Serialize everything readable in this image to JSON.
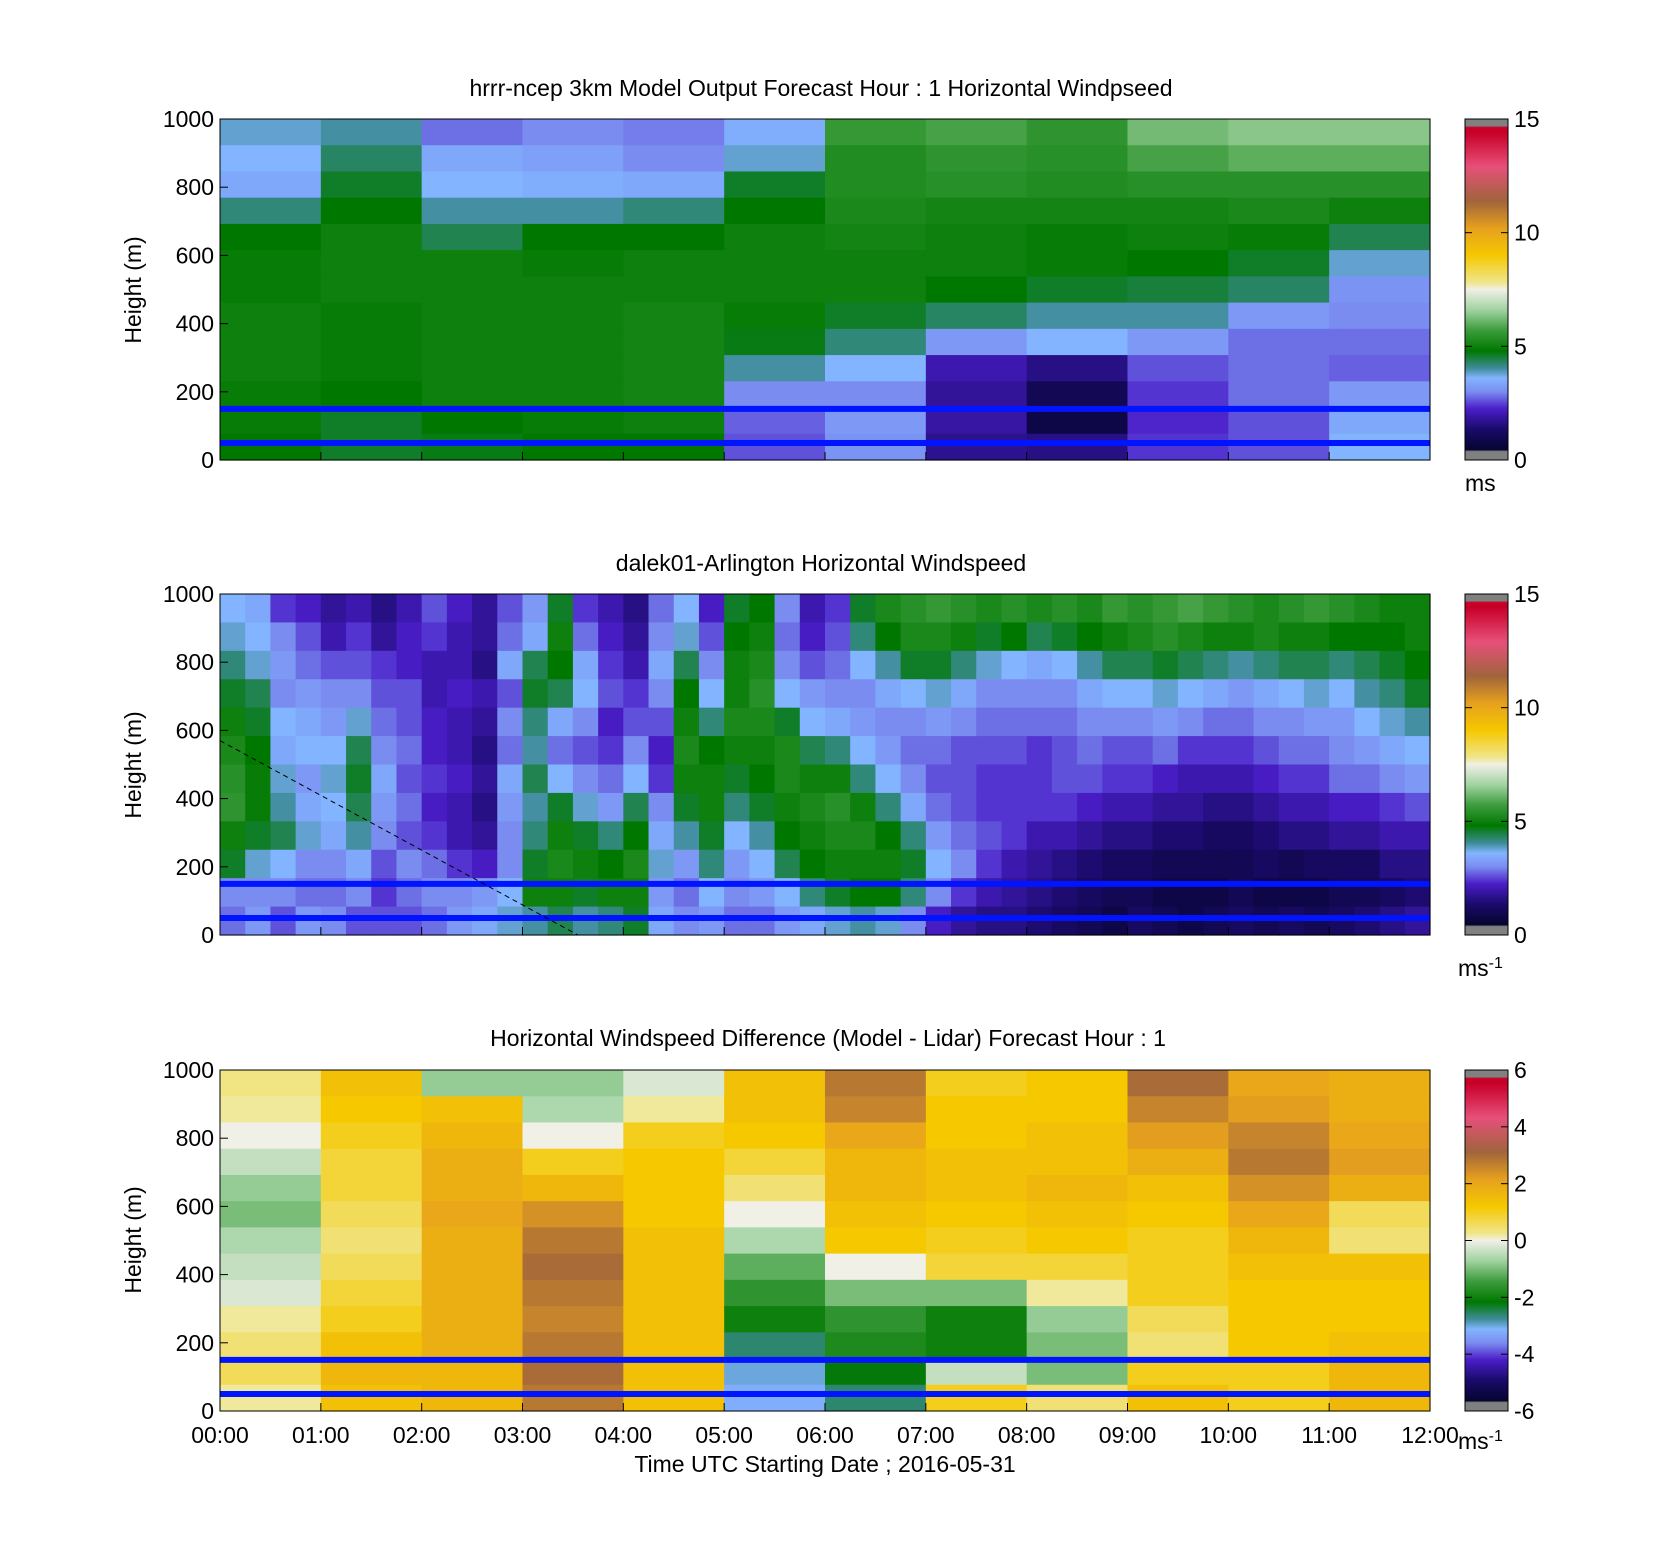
{
  "chart_data": [
    {
      "type": "heatmap",
      "title": "hrrr-ncep 3km Model Output   Forecast Hour : 1 Horizontal Windpseed",
      "ylabel": "Height (m)",
      "xlabel": "",
      "ylim": [
        0,
        1000
      ],
      "yticks": [
        "0",
        "200",
        "400",
        "600",
        "800",
        "1000"
      ],
      "colorbar": {
        "min": 0,
        "max": 15,
        "ticks": [
          "0",
          "5",
          "10",
          "15"
        ],
        "unit": "ms",
        "unit_sup": "",
        "palette": "windspeed"
      },
      "reference_lines_m": [
        50,
        150
      ],
      "x_hours": [
        0,
        1,
        2,
        3,
        4,
        5,
        6,
        7,
        8,
        9,
        10,
        11,
        12
      ],
      "cells_note": "hourly model columns of windspeed (m/s), rows from 1000 m down to 0 m",
      "columns": [
        [
          3.8,
          3.6,
          3.4,
          4.2,
          4.8,
          4.9,
          4.9,
          5.0,
          5.0,
          5.0,
          4.9,
          4.9,
          4.8
        ],
        [
          4.0,
          4.3,
          4.6,
          4.8,
          5.0,
          5.0,
          5.0,
          4.9,
          4.9,
          4.9,
          4.8,
          4.6,
          4.6
        ],
        [
          2.8,
          3.4,
          3.6,
          4.0,
          4.4,
          5.0,
          5.0,
          5.0,
          5.0,
          5.0,
          5.0,
          4.8,
          4.7
        ],
        [
          3.0,
          3.3,
          3.5,
          4.0,
          4.8,
          4.9,
          5.0,
          5.0,
          5.0,
          5.0,
          5.0,
          4.9,
          4.8
        ],
        [
          2.9,
          3.0,
          3.4,
          4.2,
          4.8,
          5.0,
          5.0,
          5.1,
          5.1,
          5.1,
          5.1,
          5.0,
          4.8
        ],
        [
          3.5,
          3.8,
          4.6,
          4.8,
          5.0,
          5.0,
          5.0,
          4.9,
          4.7,
          4.0,
          3.0,
          2.7,
          2.6
        ],
        [
          5.6,
          5.3,
          5.3,
          5.2,
          5.1,
          5.0,
          5.0,
          4.6,
          4.2,
          3.6,
          3.0,
          3.2,
          3.1
        ],
        [
          5.8,
          5.5,
          5.4,
          5.1,
          5.0,
          5.0,
          4.8,
          4.3,
          3.2,
          2.0,
          1.8,
          1.9,
          1.7
        ],
        [
          5.5,
          5.4,
          5.3,
          5.1,
          4.9,
          4.9,
          4.6,
          4.0,
          3.6,
          1.6,
          1.0,
          0.8,
          1.6
        ],
        [
          6.2,
          5.8,
          5.4,
          5.1,
          5.0,
          4.8,
          4.5,
          4.0,
          3.2,
          2.6,
          2.4,
          2.3,
          2.4
        ],
        [
          6.4,
          6.0,
          5.4,
          5.2,
          4.9,
          4.6,
          4.3,
          3.2,
          2.8,
          2.8,
          2.8,
          2.6,
          2.6
        ],
        [
          6.4,
          6.0,
          5.4,
          5.0,
          4.4,
          3.8,
          3.1,
          3.0,
          2.8,
          2.7,
          3.2,
          3.4,
          3.6
        ]
      ]
    },
    {
      "type": "heatmap",
      "title": "dalek01-Arlington  Horizontal Windspeed",
      "ylabel": "Height (m)",
      "xlabel": "",
      "ylim": [
        0,
        1000
      ],
      "yticks": [
        "0",
        "200",
        "400",
        "600",
        "800",
        "1000"
      ],
      "colorbar": {
        "min": 0,
        "max": 15,
        "ticks": [
          "0",
          "5",
          "10",
          "15"
        ],
        "unit": "ms",
        "unit_sup": "-1",
        "palette": "windspeed"
      },
      "reference_lines_m": [
        50,
        150
      ],
      "dashed_line": {
        "from": [
          0,
          570
        ],
        "to": [
          3.55,
          0
        ]
      },
      "x_hours": [
        0,
        1,
        2,
        3,
        4,
        5,
        6,
        7,
        8,
        9,
        10,
        11,
        12
      ],
      "cells_note": "lidar windspeed (m/s) sampled every 15 min at 12 height bands from 1000 m down to 0 m",
      "columns": [
        [
          3.6,
          3.8,
          4.2,
          4.6,
          5.0,
          5.2,
          5.4,
          5.5,
          5.0,
          4.6,
          3.0,
          2.8
        ],
        [
          3.4,
          3.6,
          3.8,
          4.4,
          4.6,
          4.8,
          4.9,
          4.9,
          4.6,
          3.8,
          3.0,
          3.2
        ],
        [
          2.4,
          3.0,
          3.2,
          3.0,
          3.6,
          3.4,
          3.8,
          4.0,
          4.4,
          3.6,
          3.0,
          2.6
        ],
        [
          2.2,
          2.6,
          2.8,
          3.2,
          3.4,
          3.6,
          3.2,
          3.4,
          3.8,
          3.0,
          2.8,
          3.2
        ],
        [
          1.8,
          2.0,
          2.6,
          3.0,
          3.2,
          3.6,
          3.8,
          3.6,
          3.4,
          3.0,
          2.8,
          3.0
        ],
        [
          2.0,
          2.4,
          2.6,
          3.0,
          3.8,
          4.4,
          4.6,
          4.4,
          4.0,
          3.4,
          3.0,
          2.6
        ],
        [
          1.6,
          1.8,
          2.4,
          2.6,
          2.8,
          3.0,
          3.4,
          3.2,
          3.0,
          2.6,
          2.4,
          2.6
        ],
        [
          2.0,
          2.2,
          2.2,
          2.6,
          2.6,
          2.8,
          2.6,
          2.8,
          2.6,
          3.0,
          2.8,
          2.6
        ],
        [
          2.6,
          2.4,
          2.0,
          2.0,
          2.2,
          2.2,
          2.4,
          2.2,
          2.4,
          2.8,
          3.0,
          2.8
        ],
        [
          2.2,
          2.0,
          2.0,
          2.2,
          2.0,
          2.0,
          2.2,
          2.0,
          2.0,
          2.4,
          3.0,
          3.2
        ],
        [
          1.8,
          1.8,
          1.6,
          2.0,
          1.8,
          1.6,
          1.8,
          1.6,
          1.8,
          2.2,
          3.2,
          3.4
        ],
        [
          2.6,
          2.8,
          3.4,
          2.6,
          3.0,
          2.8,
          3.4,
          3.2,
          3.0,
          3.0,
          3.6,
          3.8
        ],
        [
          3.2,
          3.4,
          4.4,
          4.6,
          4.2,
          4.0,
          4.4,
          4.0,
          4.2,
          4.6,
          5.0,
          4.0
        ],
        [
          4.6,
          5.0,
          4.8,
          4.4,
          3.4,
          2.8,
          3.6,
          4.6,
          5.0,
          5.2,
          5.0,
          4.4
        ],
        [
          2.4,
          2.8,
          3.4,
          3.6,
          3.0,
          2.6,
          3.0,
          3.8,
          4.6,
          5.0,
          4.6,
          4.0
        ],
        [
          2.0,
          2.2,
          2.4,
          2.6,
          2.2,
          2.4,
          2.8,
          3.2,
          4.2,
          4.8,
          5.0,
          4.2
        ],
        [
          1.6,
          1.8,
          2.0,
          2.4,
          2.6,
          3.0,
          3.6,
          4.4,
          4.8,
          5.2,
          5.0,
          4.6
        ],
        [
          2.8,
          3.0,
          3.4,
          3.0,
          2.6,
          2.2,
          2.4,
          3.0,
          3.4,
          3.8,
          3.2,
          3.4
        ],
        [
          3.6,
          3.8,
          4.4,
          4.8,
          5.0,
          5.2,
          5.0,
          4.6,
          4.0,
          3.2,
          2.8,
          3.0
        ],
        [
          2.2,
          2.6,
          3.0,
          3.6,
          4.2,
          4.8,
          5.0,
          5.0,
          4.6,
          4.2,
          3.6,
          3.2
        ],
        [
          4.6,
          4.8,
          5.0,
          5.0,
          5.2,
          5.0,
          4.6,
          4.2,
          3.6,
          3.2,
          3.0,
          2.8
        ],
        [
          4.8,
          5.0,
          5.2,
          5.4,
          5.2,
          5.0,
          4.8,
          4.6,
          4.0,
          3.6,
          3.2,
          2.8
        ],
        [
          3.0,
          2.8,
          3.0,
          3.6,
          4.6,
          5.2,
          5.2,
          5.0,
          4.8,
          4.4,
          3.6,
          3.2
        ],
        [
          2.0,
          2.2,
          2.6,
          3.2,
          3.6,
          4.4,
          5.0,
          5.2,
          5.0,
          4.8,
          4.2,
          3.4
        ],
        [
          2.4,
          2.6,
          2.8,
          3.0,
          3.4,
          4.2,
          5.0,
          5.4,
          5.2,
          5.0,
          4.6,
          3.8
        ],
        [
          4.6,
          4.2,
          3.6,
          3.0,
          3.2,
          3.6,
          4.2,
          5.0,
          5.2,
          5.0,
          4.8,
          4.0
        ],
        [
          5.2,
          4.8,
          4.0,
          3.4,
          3.0,
          3.2,
          3.6,
          4.2,
          4.8,
          5.0,
          4.8,
          3.8
        ],
        [
          5.4,
          5.2,
          4.6,
          3.6,
          3.0,
          2.8,
          3.0,
          3.4,
          4.2,
          4.6,
          4.2,
          3.0
        ],
        [
          5.6,
          5.2,
          4.6,
          3.8,
          3.2,
          2.8,
          2.6,
          2.8,
          3.2,
          3.6,
          3.0,
          2.2
        ],
        [
          5.4,
          5.0,
          4.2,
          3.4,
          3.0,
          2.6,
          2.6,
          2.6,
          2.8,
          3.0,
          2.4,
          1.8
        ],
        [
          5.2,
          4.6,
          3.8,
          3.0,
          2.8,
          2.6,
          2.4,
          2.4,
          2.6,
          2.4,
          2.0,
          1.6
        ],
        [
          5.4,
          4.8,
          3.6,
          3.0,
          2.8,
          2.6,
          2.4,
          2.4,
          2.4,
          2.0,
          1.8,
          1.6
        ],
        [
          5.2,
          4.4,
          3.4,
          3.0,
          2.8,
          2.4,
          2.4,
          2.4,
          2.0,
          1.8,
          1.6,
          1.4
        ],
        [
          5.4,
          4.6,
          3.6,
          3.0,
          2.8,
          2.6,
          2.6,
          2.4,
          2.0,
          1.6,
          1.4,
          1.2
        ],
        [
          5.2,
          4.8,
          4.0,
          3.4,
          3.0,
          2.8,
          2.6,
          2.2,
          1.8,
          1.4,
          1.2,
          1.0
        ],
        [
          5.6,
          5.0,
          4.4,
          3.6,
          3.0,
          2.6,
          2.4,
          2.0,
          1.6,
          1.2,
          1.0,
          0.8
        ],
        [
          5.4,
          5.2,
          4.4,
          3.6,
          3.0,
          2.6,
          2.4,
          2.0,
          1.6,
          1.2,
          1.0,
          1.2
        ],
        [
          5.6,
          5.4,
          4.6,
          3.8,
          3.2,
          2.8,
          2.2,
          1.8,
          1.4,
          1.0,
          0.8,
          1.0
        ],
        [
          5.8,
          5.2,
          4.4,
          3.6,
          3.0,
          2.4,
          2.0,
          1.8,
          1.4,
          1.0,
          0.8,
          0.8
        ],
        [
          5.6,
          5.0,
          4.2,
          3.4,
          2.8,
          2.4,
          2.0,
          1.6,
          1.2,
          1.0,
          0.8,
          1.0
        ],
        [
          5.4,
          5.0,
          4.0,
          3.2,
          2.8,
          2.4,
          2.0,
          1.6,
          1.2,
          1.0,
          1.0,
          1.2
        ],
        [
          5.2,
          5.2,
          4.2,
          3.4,
          3.0,
          2.6,
          2.2,
          1.8,
          1.4,
          1.2,
          0.8,
          1.0
        ],
        [
          5.4,
          5.0,
          4.4,
          3.6,
          3.0,
          2.8,
          2.4,
          2.0,
          1.6,
          1.0,
          0.8,
          1.2
        ],
        [
          5.6,
          5.0,
          4.4,
          3.8,
          3.2,
          2.8,
          2.4,
          2.0,
          1.6,
          1.2,
          0.8,
          1.0
        ],
        [
          5.4,
          4.8,
          4.2,
          3.6,
          3.2,
          3.0,
          2.8,
          2.2,
          1.8,
          1.2,
          1.0,
          1.2
        ],
        [
          5.2,
          4.8,
          4.4,
          4.0,
          3.6,
          3.2,
          2.8,
          2.2,
          1.8,
          1.2,
          1.0,
          1.4
        ],
        [
          5.0,
          4.8,
          4.6,
          4.2,
          3.8,
          3.4,
          3.0,
          2.4,
          2.0,
          1.6,
          1.2,
          1.6
        ],
        [
          5.0,
          5.0,
          4.8,
          4.6,
          4.0,
          3.6,
          3.2,
          2.6,
          2.0,
          1.6,
          1.4,
          1.8
        ]
      ]
    },
    {
      "type": "heatmap",
      "title": "Horizontal Windspeed Difference (Model - Lidar) Forecast Hour : 1",
      "ylabel": "Height (m)",
      "xlabel": "Time UTC  Starting Date ; 2016-05-31",
      "ylim": [
        0,
        1000
      ],
      "yticks": [
        "0",
        "200",
        "400",
        "600",
        "800",
        "1000"
      ],
      "xticks": [
        "00:00",
        "01:00",
        "02:00",
        "03:00",
        "04:00",
        "05:00",
        "06:00",
        "07:00",
        "08:00",
        "09:00",
        "10:00",
        "11:00",
        "12:00"
      ],
      "colorbar": {
        "min": -6,
        "max": 6,
        "ticks": [
          "-6",
          "-4",
          "-2",
          "0",
          "2",
          "4",
          "6"
        ],
        "unit": "ms",
        "unit_sup": "-1",
        "palette": "difference"
      },
      "reference_lines_m": [
        50,
        150
      ],
      "x_hours": [
        0,
        1,
        2,
        3,
        4,
        5,
        6,
        7,
        8,
        9,
        10,
        11,
        12
      ],
      "cells_note": "hourly difference columns (m/s), rows from 1000 m down to 0 m",
      "columns": [
        [
          0.3,
          0.2,
          0.0,
          -0.4,
          -0.8,
          -1.0,
          -0.6,
          -0.4,
          -0.2,
          0.2,
          0.4,
          0.6,
          0.2
        ],
        [
          1.4,
          1.2,
          1.0,
          0.8,
          0.8,
          0.6,
          0.4,
          0.6,
          0.8,
          1.0,
          1.4,
          1.6,
          1.4
        ],
        [
          -0.8,
          1.4,
          1.6,
          1.8,
          1.8,
          2.0,
          1.8,
          1.8,
          1.8,
          1.8,
          1.8,
          1.6,
          1.6
        ],
        [
          -0.8,
          -0.6,
          0.0,
          1.0,
          1.6,
          2.4,
          2.8,
          3.0,
          2.8,
          2.6,
          2.8,
          3.0,
          2.8
        ],
        [
          -0.2,
          0.2,
          1.0,
          1.2,
          1.2,
          1.2,
          1.4,
          1.4,
          1.4,
          1.4,
          1.4,
          1.4,
          1.4
        ],
        [
          1.4,
          1.4,
          1.2,
          0.8,
          0.4,
          0.0,
          -0.6,
          -1.2,
          -1.6,
          -2.0,
          -2.6,
          -3.0,
          -3.2
        ],
        [
          2.8,
          2.6,
          2.0,
          1.6,
          1.6,
          1.4,
          1.2,
          0.0,
          -1.0,
          -1.6,
          -1.8,
          -2.2,
          -2.6
        ],
        [
          1.0,
          1.2,
          1.2,
          1.4,
          1.4,
          1.2,
          1.0,
          0.8,
          -1.0,
          -2.0,
          -2.0,
          -0.4,
          1.0
        ],
        [
          1.2,
          1.2,
          1.4,
          1.4,
          1.6,
          1.4,
          1.2,
          0.8,
          0.2,
          -0.8,
          -1.0,
          -1.0,
          0.4
        ],
        [
          3.0,
          2.6,
          2.2,
          1.8,
          1.4,
          1.2,
          1.0,
          1.0,
          1.0,
          0.6,
          0.4,
          1.0,
          1.4
        ],
        [
          2.0,
          2.2,
          2.6,
          2.8,
          2.4,
          2.0,
          1.6,
          1.4,
          1.2,
          1.2,
          1.2,
          1.0,
          1.0
        ],
        [
          1.8,
          1.8,
          2.0,
          2.2,
          1.8,
          0.6,
          0.4,
          1.4,
          1.2,
          1.2,
          1.4,
          1.6,
          1.6
        ]
      ]
    }
  ]
}
